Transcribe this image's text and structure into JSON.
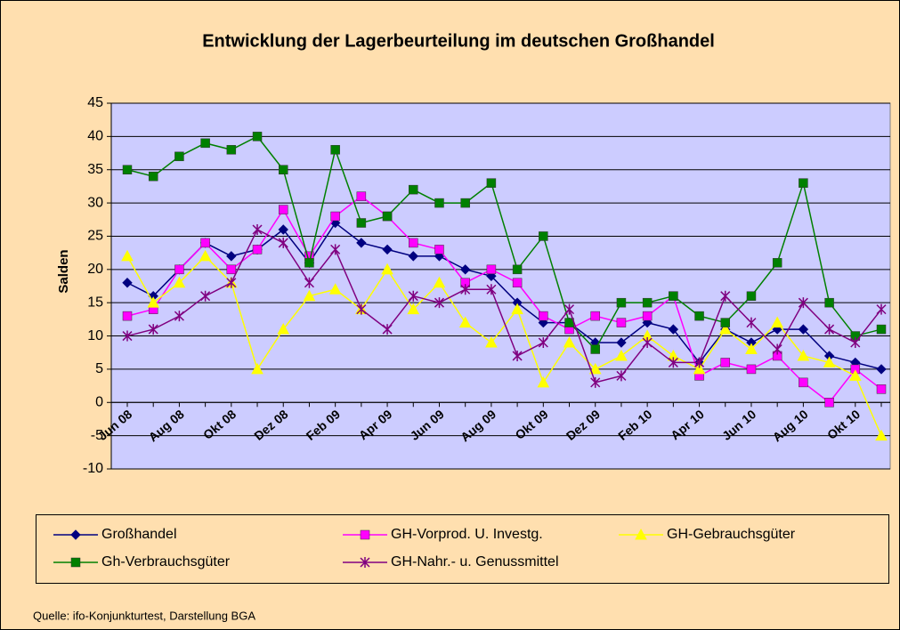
{
  "chart_data": {
    "type": "line",
    "title": "Entwicklung der Lagerbeurteilung im deutschen Großhandel",
    "y_label": "Salden",
    "source": "Quelle: ifo-Konjunkturtest, Darstellung BGA",
    "categories": [
      "Jun 08",
      null,
      "Aug 08",
      null,
      "Okt 08",
      null,
      "Dez 08",
      null,
      "Feb 09",
      null,
      "Apr 09",
      null,
      "Jun 09",
      null,
      "Aug 09",
      null,
      "Okt 09",
      null,
      "Dez 09",
      null,
      "Feb 10",
      null,
      "Apr 10",
      null,
      "Jun 10",
      null,
      "Aug 10",
      null,
      "Okt 10",
      null
    ],
    "ylim": [
      -10,
      45
    ],
    "yticks": [
      -10,
      -5,
      0,
      5,
      10,
      15,
      20,
      25,
      30,
      35,
      40,
      45
    ],
    "grid": true,
    "series": [
      {
        "name": "Großhandel",
        "color": "#000080",
        "marker": "diamond",
        "values": [
          18,
          16,
          20,
          24,
          22,
          23,
          26,
          21,
          27,
          24,
          23,
          22,
          22,
          20,
          19,
          15,
          12,
          12,
          9,
          9,
          12,
          11,
          6,
          11,
          9,
          11,
          11,
          7,
          6,
          5
        ]
      },
      {
        "name": "GH-Vorprod. U. Investg.",
        "color": "#FF00FF",
        "marker": "square",
        "values": [
          13,
          14,
          20,
          24,
          20,
          23,
          29,
          22,
          28,
          31,
          28,
          24,
          23,
          18,
          20,
          18,
          13,
          11,
          13,
          12,
          13,
          16,
          4,
          6,
          5,
          7,
          3,
          0,
          5,
          2
        ]
      },
      {
        "name": "GH-Gebrauchsgüter",
        "color": "#FFFF00",
        "marker": "triangle",
        "values": [
          22,
          15,
          18,
          22,
          18,
          5,
          11,
          16,
          17,
          14,
          20,
          14,
          18,
          12,
          9,
          14,
          3,
          9,
          5,
          7,
          10,
          7,
          5,
          11,
          8,
          12,
          7,
          6,
          4,
          -5
        ]
      },
      {
        "name": "Gh-Verbrauchsgüter",
        "color": "#008000",
        "marker": "square",
        "values": [
          35,
          34,
          37,
          39,
          38,
          40,
          35,
          21,
          38,
          27,
          28,
          32,
          30,
          30,
          33,
          20,
          25,
          12,
          8,
          15,
          15,
          16,
          13,
          12,
          16,
          21,
          33,
          15,
          10,
          11
        ]
      },
      {
        "name": "GH-Nahr.- u. Genussmittel",
        "color": "#800080",
        "marker": "star",
        "values": [
          10,
          11,
          13,
          16,
          18,
          26,
          24,
          18,
          23,
          14,
          11,
          16,
          15,
          17,
          17,
          7,
          9,
          14,
          3,
          4,
          9,
          6,
          6,
          16,
          12,
          8,
          15,
          11,
          9,
          14
        ]
      }
    ]
  }
}
